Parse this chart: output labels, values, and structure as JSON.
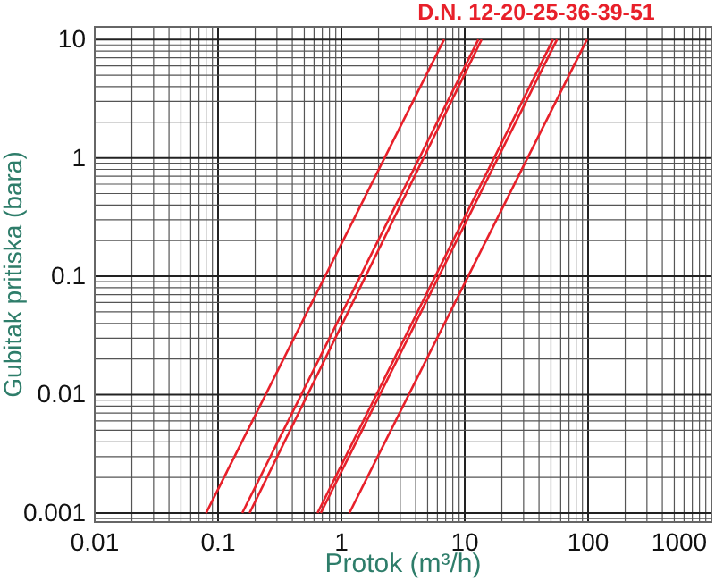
{
  "chart_data": {
    "type": "line",
    "xlabel": "Protok (m³/h)",
    "ylabel": "Gubitak pritiska (bara)",
    "annotations": [
      "D.N. 12-20-25-36-39-51"
    ],
    "log": "xy",
    "grid": true,
    "marker": "none",
    "line_style": "solid",
    "xlim": [
      0.01,
      1000
    ],
    "xticks": [
      0.01,
      0.1,
      1,
      10,
      100,
      1000
    ],
    "ylim": [
      0.00084,
      12.8
    ],
    "yticks": [
      0.001,
      0.01,
      0.1,
      1,
      10
    ],
    "series": [
      {
        "color": "#e8202a",
        "x": [
          0.08,
          6.8
        ],
        "values": [
          0.001,
          10
        ]
      },
      {
        "color": "#e8202a",
        "x": [
          0.157,
          12.9
        ],
        "values": [
          0.001,
          10
        ]
      },
      {
        "color": "#e8202a",
        "x": [
          0.18,
          13.7
        ],
        "values": [
          0.001,
          10
        ]
      },
      {
        "color": "#e8202a",
        "x": [
          0.64,
          52
        ],
        "values": [
          0.001,
          10
        ]
      },
      {
        "color": "#e8202a",
        "x": [
          0.68,
          56
        ],
        "values": [
          0.001,
          10
        ]
      },
      {
        "color": "#e8202a",
        "x": [
          1.16,
          98
        ],
        "values": [
          0.001,
          10
        ]
      }
    ]
  }
}
